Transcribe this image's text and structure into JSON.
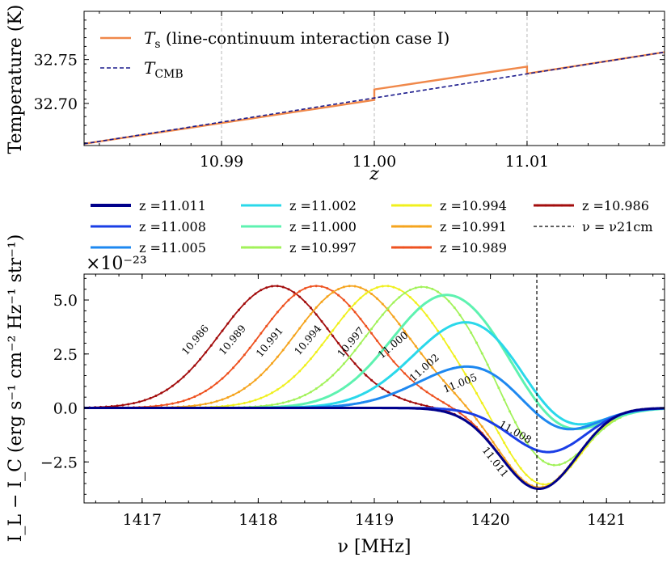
{
  "chart_data": [
    {
      "type": "line",
      "xlabel": "z",
      "ylabel": "Temperature (K)",
      "xlim": [
        10.981,
        11.019
      ],
      "ylim": [
        32.652,
        32.805
      ],
      "xticks": [
        "10.99",
        "11.00",
        "11.01"
      ],
      "xtick_values": [
        10.99,
        11.0,
        11.01
      ],
      "yticks": [
        "32.70",
        "32.75"
      ],
      "ytick_values": [
        32.7,
        32.75
      ],
      "vlines": [
        10.99,
        11.0,
        11.01
      ],
      "legend_placement": "top-left",
      "series": [
        {
          "name": "T_s (line-continuum interaction case I)",
          "name_main": "T",
          "name_sub": "s",
          "name_rest": " (line-continuum interaction case I)",
          "color": "#f0884a",
          "x": [
            10.981,
            11.0,
            11.0,
            11.01,
            11.01,
            11.019
          ],
          "y": [
            32.654,
            32.704,
            32.716,
            32.742,
            32.734,
            32.7585
          ]
        },
        {
          "name": "T_CMB",
          "name_main": "T",
          "name_sub": "CMB",
          "name_rest": "",
          "color": "#1a1a8c",
          "x": [
            10.981,
            11.019
          ],
          "y": [
            32.654,
            32.7585
          ]
        }
      ]
    },
    {
      "type": "line",
      "xlabel": "ν [MHz]",
      "ylabel": "I_L − I_C (erg s⁻¹ cm⁻² Hz⁻¹ str⁻¹)",
      "y_offset_label": "×10⁻²³",
      "xlim": [
        1416.5,
        1421.5
      ],
      "ylim": [
        -4.4,
        6.2
      ],
      "xticks": [
        "1417",
        "1418",
        "1419",
        "1420",
        "1421"
      ],
      "xtick_values": [
        1417,
        1418,
        1419,
        1420,
        1421
      ],
      "yticks": [
        "−2.5",
        "0.0",
        "2.5",
        "5.0"
      ],
      "ytick_values": [
        -2.5,
        0.0,
        2.5,
        5.0
      ],
      "vline": {
        "x": 1420.4,
        "label": "ν = ν21cm"
      },
      "legend_placement": "above",
      "series": [
        {
          "name": "z =11.011",
          "z": 11.011,
          "color": "#00008b",
          "markers": false,
          "peak_x": 1420.4,
          "peak_y": 0.0,
          "dip_x": 1420.42,
          "dip_y": -3.75,
          "inline_label": "11.011",
          "inline_x": 1420.02,
          "inline_y": -2.6,
          "inline_rot": 55
        },
        {
          "name": "z =11.008",
          "z": 11.008,
          "color": "#1a3ee6",
          "markers": false,
          "peak_x": 1420.4,
          "peak_y": 0.0,
          "dip_x": 1420.5,
          "dip_y": -2.05,
          "inline_label": "11.008",
          "inline_x": 1420.2,
          "inline_y": -1.25,
          "inline_rot": 38
        },
        {
          "name": "z =11.005",
          "z": 11.005,
          "color": "#1e88f0",
          "markers": false,
          "peak_x": 1419.88,
          "peak_y": 2.05,
          "dip_x": 1420.57,
          "dip_y": -1.6,
          "inline_label": "11.005",
          "inline_x": 1419.75,
          "inline_y": 1.0,
          "inline_rot": 30
        },
        {
          "name": "z =11.002",
          "z": 11.002,
          "color": "#2ad8ea",
          "markers": false,
          "peak_x": 1419.82,
          "peak_y": 4.05,
          "dip_x": 1420.6,
          "dip_y": -1.55,
          "inline_label": "11.002",
          "inline_x": 1419.45,
          "inline_y": 1.75,
          "inline_rot": 38
        },
        {
          "name": "z =11.000",
          "z": 11.0,
          "color": "#5ef2b0",
          "markers": false,
          "peak_x": 1419.63,
          "peak_y": 5.25,
          "dip_x": 1420.62,
          "dip_y": -1.45,
          "inline_label": "11.000",
          "inline_x": 1419.18,
          "inline_y": 2.8,
          "inline_rot": 45
        },
        {
          "name": "z =10.997",
          "z": 10.997,
          "color": "#a2f25a",
          "markers": true,
          "peak_x": 1419.42,
          "peak_y": 5.62,
          "dip_x": 1420.5,
          "dip_y": -3.05,
          "inline_label": "10.997",
          "inline_x": 1418.82,
          "inline_y": 2.95,
          "inline_rot": 55
        },
        {
          "name": "z =10.994",
          "z": 10.994,
          "color": "#f0f01e",
          "markers": true,
          "peak_x": 1419.1,
          "peak_y": 5.65,
          "dip_x": 1420.45,
          "dip_y": -3.65,
          "inline_label": "10.994",
          "inline_x": 1418.45,
          "inline_y": 3.05,
          "inline_rot": 55
        },
        {
          "name": "z =10.991",
          "z": 10.991,
          "color": "#f5a41e",
          "markers": true,
          "peak_x": 1418.8,
          "peak_y": 5.65,
          "dip_x": 1420.42,
          "dip_y": -3.7,
          "inline_label": "10.991",
          "inline_x": 1418.12,
          "inline_y": 2.95,
          "inline_rot": 55
        },
        {
          "name": "z =10.989",
          "z": 10.989,
          "color": "#ee5220",
          "markers": true,
          "peak_x": 1418.5,
          "peak_y": 5.65,
          "dip_x": 1420.42,
          "dip_y": -3.72,
          "inline_label": "10.989",
          "inline_x": 1417.8,
          "inline_y": 3.05,
          "inline_rot": 55
        },
        {
          "name": "z =10.986",
          "z": 10.986,
          "color": "#a30d0d",
          "markers": true,
          "peak_x": 1418.15,
          "peak_y": 5.65,
          "dip_x": 1420.42,
          "dip_y": -3.74,
          "inline_label": "10.986",
          "inline_x": 1417.48,
          "inline_y": 3.05,
          "inline_rot": 55
        }
      ]
    }
  ]
}
